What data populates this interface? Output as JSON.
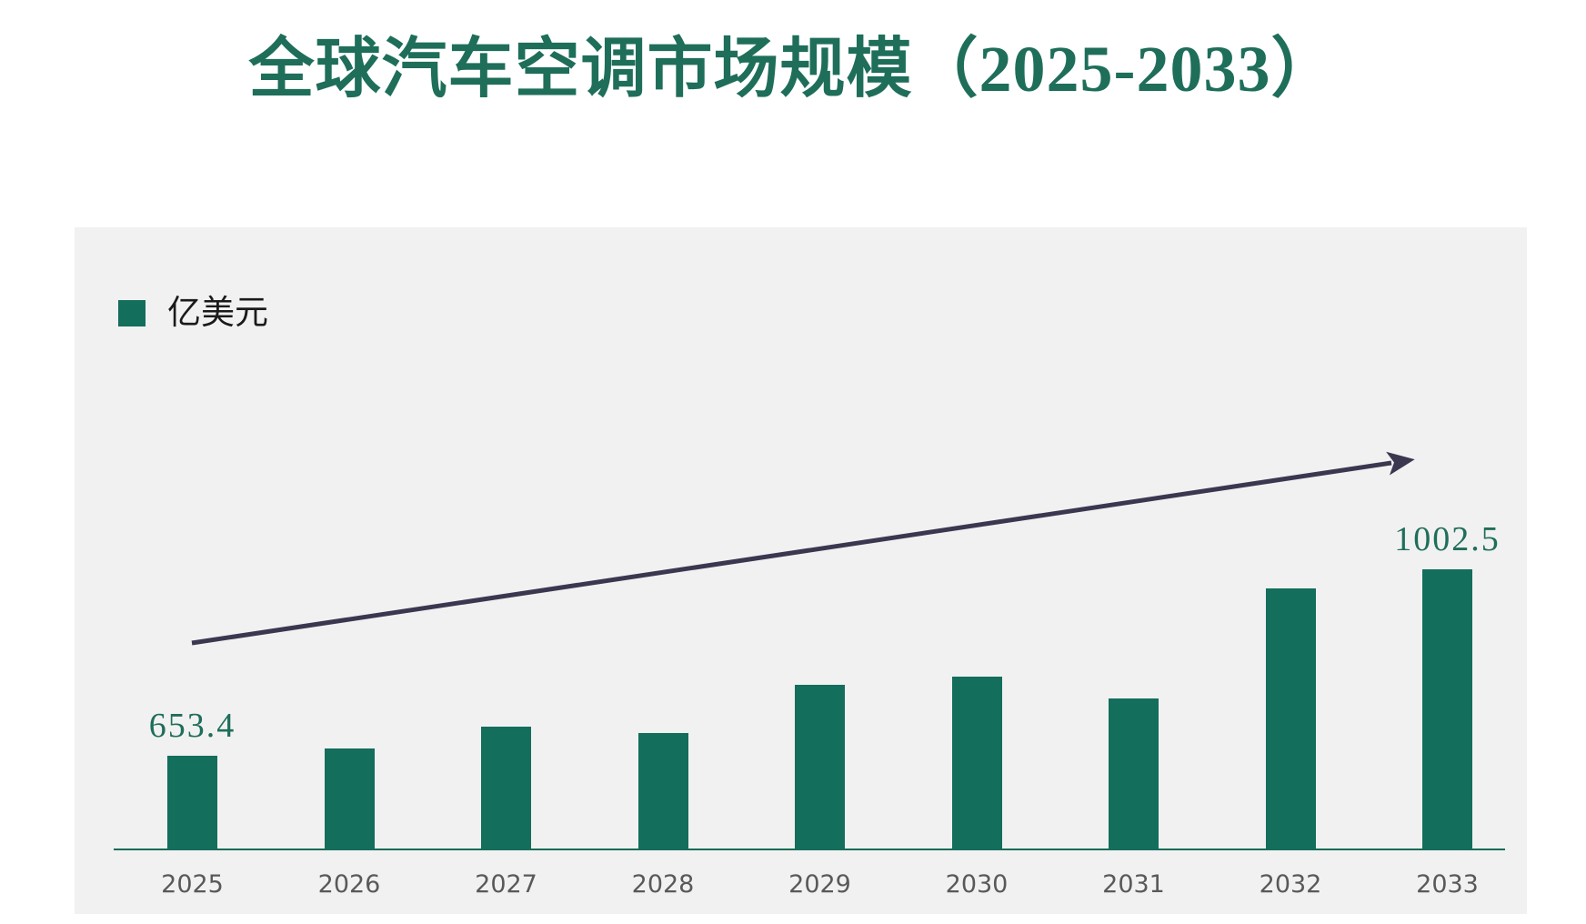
{
  "title": "全球汽车空调市场规模（2025-2033）",
  "legend": {
    "label": "亿美元"
  },
  "chart_data": {
    "type": "bar",
    "title": "全球汽车空调市场规模（2025-2033）",
    "unit": "亿美元",
    "categories": [
      "2025",
      "2026",
      "2027",
      "2028",
      "2029",
      "2030",
      "2031",
      "2032",
      "2033"
    ],
    "series": [
      {
        "name": "亿美元",
        "values": [
          653.4,
          667,
          708,
          696,
          786,
          802,
          761,
          967,
          1002.5
        ]
      }
    ],
    "point_labels": [
      {
        "index": 0,
        "text": "653.4"
      },
      {
        "index": 8,
        "text": "1002.5"
      }
    ],
    "xlabel": "",
    "ylabel": "",
    "ylim": [
      480,
      1100
    ],
    "grid": false,
    "y_axis_visible": false,
    "legend_position": "top-left",
    "has_trend_arrow": true
  },
  "colors": {
    "bar": "#136E5C",
    "title": "#1E6E5A",
    "axis_line": "#156B55",
    "tick_label": "#58595B",
    "legend_text": "#1A1A1A",
    "arrow": "#3B3750",
    "panel_background": "#F1F1F1",
    "page_background": "#FFFFFF"
  }
}
